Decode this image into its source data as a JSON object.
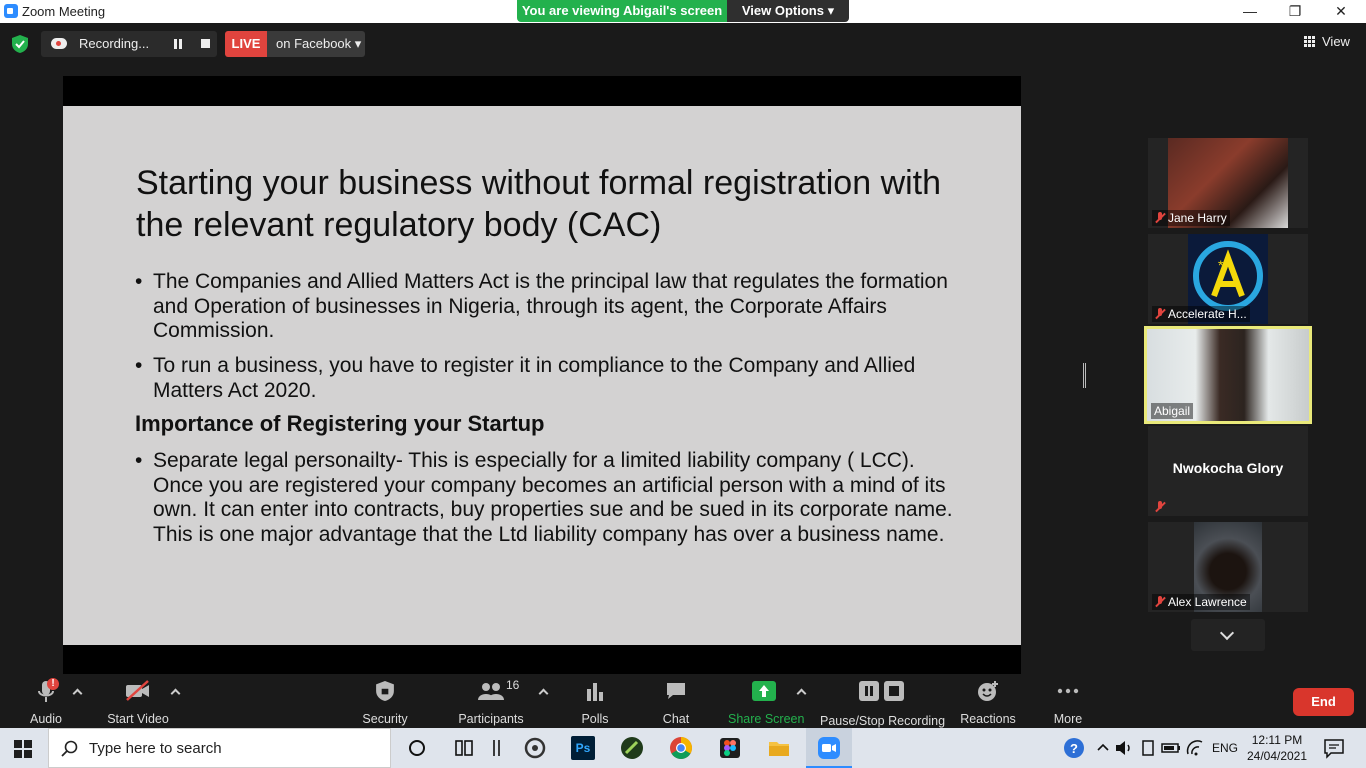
{
  "window": {
    "title": "Zoom Meeting",
    "minimize": "—",
    "restore": "❐",
    "close": "✕"
  },
  "banner": {
    "message": "You are viewing Abigail's screen",
    "view_options": "View Options ▾"
  },
  "recording": {
    "label": "Recording..."
  },
  "live": {
    "badge": "LIVE",
    "platform": "on Facebook ▾"
  },
  "view_button": {
    "label": "View"
  },
  "slide": {
    "title": "Starting your business without formal registration with the relevant regulatory body (CAC)",
    "bullets": [
      "The  Companies and Allied Matters Act is the principal law that regulates the formation and Operation of businesses in Nigeria, through its agent, the Corporate Affairs Commission.",
      " To run a business, you have to register it in compliance to the Company and Allied Matters Act 2020."
    ],
    "heading": "Importance of Registering your Startup",
    "bullets2": [
      "Separate legal personailty- This is especially for a limited liability company ( LCC). Once you are registered  your company becomes an artificial person with a mind of its own. It can enter into contracts, buy properties sue and be sued in its corporate name. This is one major advantage that the Ltd liability company has over a business name."
    ]
  },
  "participants": [
    {
      "name": "Jane Harry",
      "muted": true
    },
    {
      "name": "Accelerate H...",
      "muted": true
    },
    {
      "name": "Abigail",
      "muted": false,
      "active": true
    },
    {
      "name": "Nwokocha Glory",
      "muted": true
    },
    {
      "name": "Alex Lawrence",
      "muted": true
    }
  ],
  "toolbar": {
    "audio": "Audio",
    "start_video": "Start Video",
    "security": "Security",
    "participants": "Participants",
    "participants_count": "16",
    "polls": "Polls",
    "chat": "Chat",
    "share_screen": "Share Screen",
    "pause_stop_recording": "Pause/Stop Recording",
    "reactions": "Reactions",
    "more": "More",
    "end": "End",
    "audio_alert": "!"
  },
  "taskbar": {
    "search_placeholder": "Type here to search",
    "language": "ENG",
    "time": "12:11 PM",
    "date": "24/04/2021"
  },
  "colors": {
    "accent_green": "#23b14d",
    "live_red": "#e0443e",
    "end_red": "#d9362c",
    "active_speaker": "#e9e97a"
  }
}
